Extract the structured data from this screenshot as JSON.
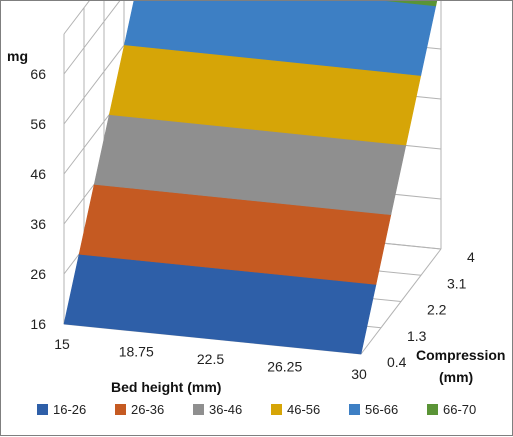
{
  "chart_data": {
    "type": "surface",
    "title": "",
    "zlabel": "mg",
    "xlabel": "Bed height (mm)",
    "ylabel_line1": "Compression",
    "ylabel_line2": "(mm)",
    "x_ticks": [
      "15",
      "18.75",
      "22.5",
      "26.25",
      "30"
    ],
    "y_ticks": [
      "0.4",
      "1.3",
      "2.2",
      "3.1",
      "4"
    ],
    "z_ticks": [
      "16",
      "26",
      "36",
      "46",
      "56",
      "66"
    ],
    "zlim": [
      16,
      74
    ],
    "surface": {
      "x": [
        15,
        30
      ],
      "y": [
        0.4,
        4
      ],
      "z_at_x15_y0.4": 16,
      "z_at_x30_y0.4": 16,
      "z_at_x15_y4": 69,
      "z_at_x30_y4": 69.5
    },
    "bands": [
      {
        "name": "16-26",
        "from": 16,
        "to": 26,
        "color": "#2e5fa8"
      },
      {
        "name": "26-36",
        "from": 26,
        "to": 36,
        "color": "#c55a22"
      },
      {
        "name": "36-46",
        "from": 36,
        "to": 46,
        "color": "#8f8f8f"
      },
      {
        "name": "46-56",
        "from": 46,
        "to": 56,
        "color": "#d6a507"
      },
      {
        "name": "56-66",
        "from": 56,
        "to": 66,
        "color": "#3d7fc4"
      },
      {
        "name": "66-70",
        "from": 66,
        "to": 70,
        "color": "#5a9436"
      }
    ],
    "legend_position": "bottom",
    "grid": true
  }
}
